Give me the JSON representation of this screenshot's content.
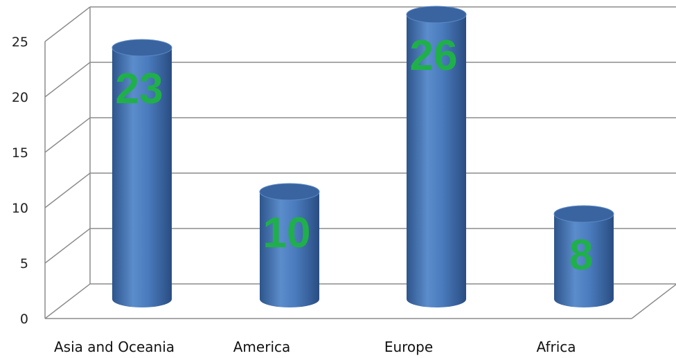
{
  "chart_data": {
    "type": "bar",
    "style": "3d-cylinder",
    "categories": [
      "Asia and Oceania",
      "America",
      "Europe",
      "Africa"
    ],
    "values": [
      23,
      10,
      26,
      8
    ],
    "data_labels": [
      "23",
      "10",
      "26",
      "8"
    ],
    "y_ticks": [
      "0",
      "5",
      "10",
      "15",
      "20",
      "25"
    ],
    "ylim": [
      0,
      25
    ],
    "grid": true,
    "legend": "none",
    "colors": {
      "bar": "#4f81bd",
      "bar_dark": "#2c4f7c",
      "bar_top": "#3a64a0",
      "data_label": "#1fb04a",
      "grid": "#8c8c8c"
    }
  }
}
